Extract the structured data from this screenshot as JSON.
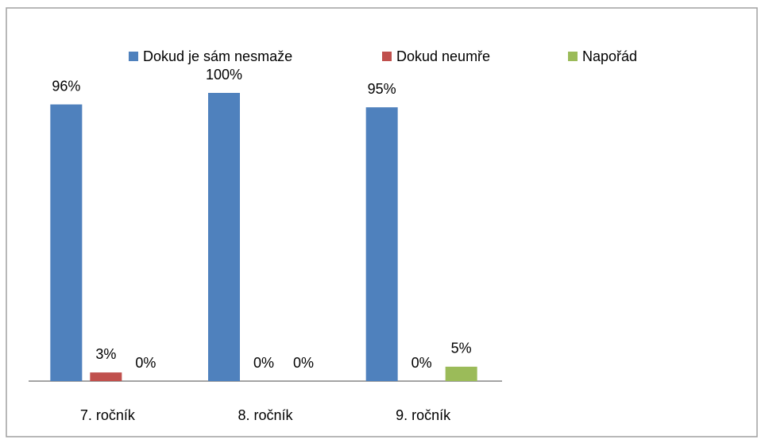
{
  "chart_data": {
    "type": "bar",
    "categories": [
      "7. ročník",
      "8. ročník",
      "9. ročník"
    ],
    "series": [
      {
        "name": "Dokud je sám nesmaže",
        "color": "#4f81bd",
        "values": [
          96,
          100,
          95
        ],
        "value_labels": [
          "96%",
          "100%",
          "95%"
        ]
      },
      {
        "name": "Dokud neumře",
        "color": "#c0504d",
        "values": [
          3,
          0,
          0
        ],
        "value_labels": [
          "3%",
          "0%",
          "0%"
        ]
      },
      {
        "name": "Napořád",
        "color": "#9bbb59",
        "values": [
          0,
          0,
          5
        ],
        "value_labels": [
          "0%",
          "0%",
          "5%"
        ]
      }
    ],
    "legend": "top"
  }
}
